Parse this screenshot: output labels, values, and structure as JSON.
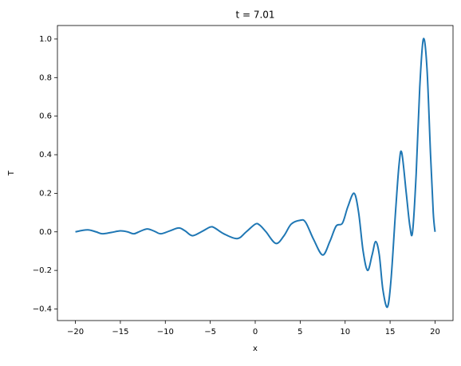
{
  "chart_data": {
    "type": "line",
    "title": "t = 7.01",
    "x_label": "x",
    "y_label": "T",
    "x": [
      -20,
      -19.2,
      -18.5,
      -17.7,
      -17,
      -16,
      -15,
      -14.2,
      -13.5,
      -12.8,
      -12,
      -11.2,
      -10.5,
      -9.5,
      -8.5,
      -7.8,
      -7,
      -6,
      -5,
      -4.5,
      -3.5,
      -2,
      -1,
      0,
      0.5,
      1.2,
      2.3,
      3.2,
      4,
      5,
      5.6,
      6.5,
      7.5,
      8.3,
      9,
      9.7,
      10.3,
      11,
      11.5,
      12,
      12.5,
      13,
      13.4,
      13.8,
      14.2,
      14.7,
      15.1,
      15.6,
      16,
      16.3,
      16.8,
      17.2,
      17.5,
      17.9,
      18.3,
      18.7,
      19.1,
      19.5,
      19.8,
      20
    ],
    "values": [
      0,
      0.008,
      0.01,
      0.0,
      -0.01,
      -0.003,
      0.005,
      0,
      -0.01,
      0.003,
      0.015,
      0.003,
      -0.01,
      0.005,
      0.02,
      0.005,
      -0.02,
      0,
      0.025,
      0.02,
      -0.01,
      -0.035,
      0,
      0.04,
      0.035,
      0,
      -0.06,
      -0.02,
      0.04,
      0.06,
      0.05,
      -0.04,
      -0.12,
      -0.05,
      0.03,
      0.045,
      0.13,
      0.2,
      0.1,
      -0.1,
      -0.2,
      -0.12,
      -0.05,
      -0.12,
      -0.3,
      -0.39,
      -0.25,
      0.1,
      0.35,
      0.41,
      0.2,
      0.03,
      0.0,
      0.3,
      0.75,
      1.0,
      0.85,
      0.4,
      0.1,
      0
    ],
    "color": "#1f77b4",
    "xlim": [
      -22,
      22
    ],
    "xticks": [
      {
        "value": -20,
        "label": "−20"
      },
      {
        "value": -15,
        "label": "−15"
      },
      {
        "value": -10,
        "label": "−10"
      },
      {
        "value": -5,
        "label": "−5"
      },
      0,
      5,
      10,
      15,
      20
    ],
    "ylim": [
      -0.46,
      1.07
    ],
    "yticks": [
      {
        "value": -0.4,
        "label": "−0.4"
      },
      {
        "value": -0.2,
        "label": "−0.2"
      },
      {
        "value": 0,
        "label": "0.0"
      },
      0.2,
      0.4,
      0.6,
      0.8,
      {
        "value": 1,
        "label": "1.0"
      }
    ]
  }
}
